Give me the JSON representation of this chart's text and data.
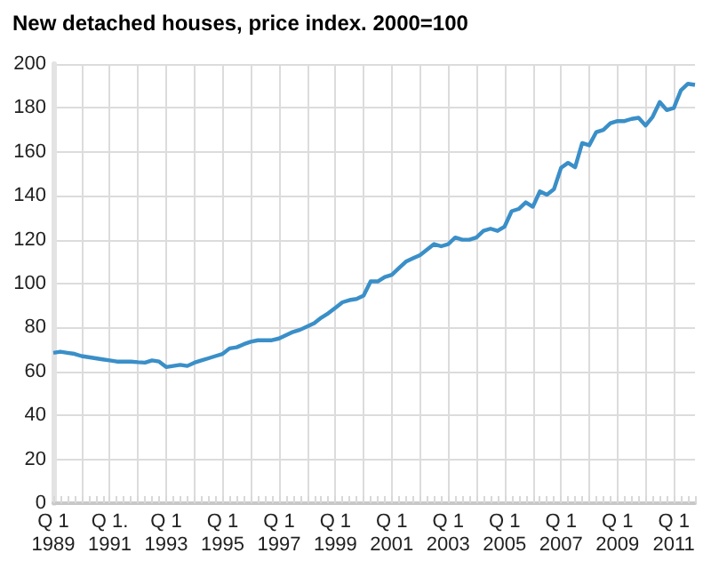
{
  "chart_data": {
    "type": "line",
    "title": "New detached houses, price index. 2000=100",
    "categories": [
      "Q 1 1989",
      null,
      null,
      null,
      null,
      null,
      null,
      null,
      "Q 1. 1991",
      null,
      null,
      null,
      null,
      null,
      null,
      null,
      "Q 1 1993",
      null,
      null,
      null,
      null,
      null,
      null,
      null,
      "Q 1 1995",
      null,
      null,
      null,
      null,
      null,
      null,
      null,
      "Q 1 1997",
      null,
      null,
      null,
      null,
      null,
      null,
      null,
      "Q 1 1999",
      null,
      null,
      null,
      null,
      null,
      null,
      null,
      "Q 1 2001",
      null,
      null,
      null,
      null,
      null,
      null,
      null,
      "Q 1 2003",
      null,
      null,
      null,
      null,
      null,
      null,
      null,
      "Q 1 2005",
      null,
      null,
      null,
      null,
      null,
      null,
      null,
      "Q 1 2007",
      null,
      null,
      null,
      null,
      null,
      null,
      null,
      "Q 1 2009",
      null,
      null,
      null,
      null,
      null,
      null,
      null,
      "Q 1 2011",
      null,
      null,
      null
    ],
    "series": [
      {
        "color": "#3a8fc8",
        "values": [
          68.5,
          69,
          68.5,
          68,
          67,
          66.5,
          66,
          65.5,
          65,
          64.5,
          64.5,
          64.5,
          64.2,
          64,
          65,
          64.5,
          62,
          62.5,
          63,
          62.5,
          64,
          65,
          66,
          67,
          68,
          70.5,
          71,
          72.4,
          73.5,
          74.2,
          74.2,
          74.2,
          75,
          76.5,
          78,
          79,
          80.5,
          82,
          84.5,
          86.5,
          89,
          91.5,
          92.5,
          93,
          94.5,
          101,
          101,
          103,
          104,
          107,
          110,
          111.5,
          113,
          115.5,
          118,
          117,
          118,
          121,
          120,
          120,
          121,
          124,
          125,
          124,
          126,
          133,
          134,
          137,
          135,
          142,
          140.5,
          143,
          152.7,
          155,
          153,
          164,
          163,
          169,
          170,
          173,
          174,
          174,
          175,
          175.5,
          172,
          176,
          182.7,
          179,
          180,
          188,
          191,
          190.5
        ]
      }
    ],
    "ylim": [
      0,
      200
    ],
    "yticks": [
      0,
      20,
      40,
      60,
      80,
      100,
      120,
      140,
      160,
      180,
      200
    ],
    "grid": true,
    "marker": "none",
    "line_style": "solid"
  }
}
